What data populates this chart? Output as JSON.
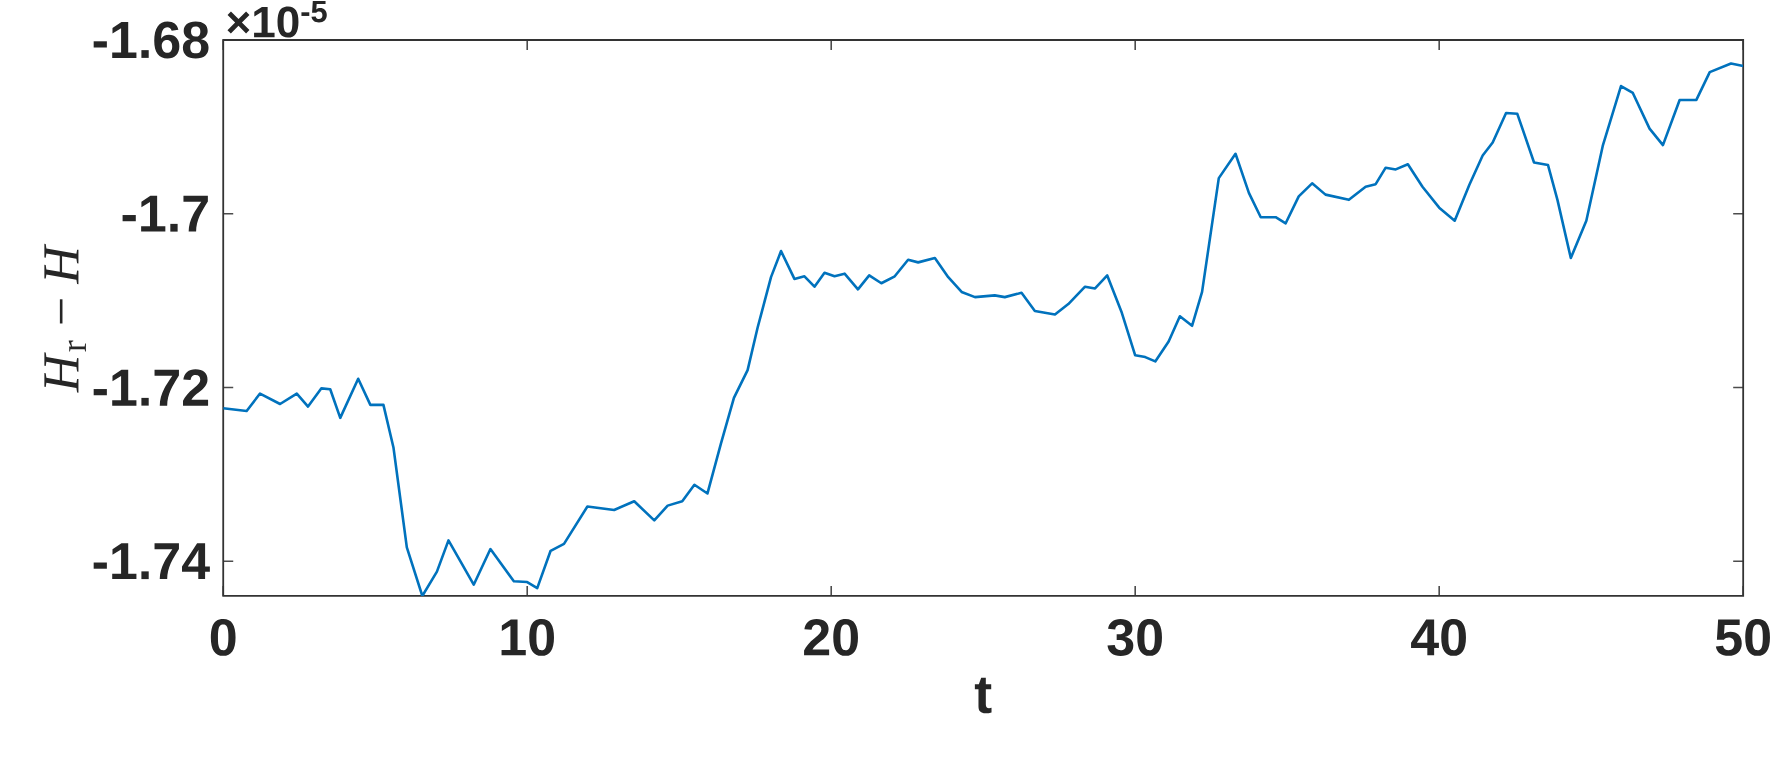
{
  "chart_data": {
    "type": "line",
    "xlabel": "t",
    "ylabel": "*H*$_{r}$ − *H*",
    "annotations": [
      "×10$^{-5}$"
    ],
    "xlim": [
      0,
      50
    ],
    "xticks": [
      0,
      10,
      20,
      30,
      40,
      50
    ],
    "ylim": [
      -1.744,
      -1.68
    ],
    "yticks": [
      -1.74,
      -1.72,
      -1.7,
      -1.68
    ],
    "grid": false,
    "marker": "none",
    "line_style": "solid",
    "series": [
      {
        "color": "#0072bd",
        "x": [
          0,
          0.77,
          1.21,
          1.87,
          2.42,
          2.79,
          3.23,
          3.52,
          3.85,
          4.44,
          4.84,
          5.27,
          5.6,
          6.04,
          6.55,
          7.03,
          7.41,
          7.8,
          8.24,
          8.79,
          9.56,
          10,
          10.33,
          10.77,
          11.21,
          11.98,
          12.86,
          13.52,
          14.18,
          14.62,
          15.1,
          15.5,
          15.93,
          16.37,
          16.8,
          17.25,
          17.58,
          18.02,
          18.35,
          18.79,
          19.12,
          19.45,
          19.78,
          20.11,
          20.44,
          20.88,
          21.25,
          21.65,
          22.09,
          22.53,
          22.86,
          23.41,
          23.85,
          24.29,
          24.73,
          25.38,
          25.71,
          26.26,
          26.7,
          27.36,
          27.8,
          28.35,
          28.68,
          29.08,
          29.56,
          30,
          30.33,
          30.66,
          31.1,
          31.47,
          31.87,
          32.2,
          32.75,
          33.3,
          33.74,
          34.13,
          34.62,
          34.95,
          35.38,
          35.82,
          36.26,
          37.03,
          37.58,
          37.91,
          38.24,
          38.57,
          38.97,
          39.45,
          40,
          40.51,
          40.99,
          41.43,
          41.76,
          42.2,
          42.57,
          43.12,
          43.58,
          43.89,
          44.33,
          44.84,
          45.38,
          45.98,
          46.37,
          46.92,
          47.36,
          47.91,
          48.46,
          48.9,
          49.6,
          50
        ],
        "values": [
          -1.7224,
          -1.7227,
          -1.7207,
          -1.7219,
          -1.7207,
          -1.7222,
          -1.7201,
          -1.7202,
          -1.7235,
          -1.719,
          -1.722,
          -1.722,
          -1.7269,
          -1.7384,
          -1.744,
          -1.7412,
          -1.7376,
          -1.74,
          -1.7427,
          -1.7386,
          -1.7423,
          -1.7424,
          -1.7431,
          -1.7388,
          -1.738,
          -1.7337,
          -1.7341,
          -1.7331,
          -1.7353,
          -1.7336,
          -1.7331,
          -1.7312,
          -1.7322,
          -1.7265,
          -1.7212,
          -1.718,
          -1.7131,
          -1.7073,
          -1.7043,
          -1.7075,
          -1.7072,
          -1.7084,
          -1.7068,
          -1.7072,
          -1.7069,
          -1.7087,
          -1.7071,
          -1.708,
          -1.7072,
          -1.7053,
          -1.7056,
          -1.7051,
          -1.7073,
          -1.709,
          -1.7096,
          -1.7094,
          -1.7096,
          -1.7091,
          -1.7112,
          -1.7116,
          -1.7104,
          -1.7084,
          -1.7086,
          -1.7071,
          -1.7114,
          -1.7163,
          -1.7165,
          -1.717,
          -1.7147,
          -1.7118,
          -1.7129,
          -1.709,
          -1.6959,
          -1.6931,
          -1.6976,
          -1.7004,
          -1.7004,
          -1.7011,
          -1.698,
          -1.6965,
          -1.6978,
          -1.6984,
          -1.6969,
          -1.6966,
          -1.6947,
          -1.6949,
          -1.6943,
          -1.6969,
          -1.6993,
          -1.7008,
          -1.6967,
          -1.6933,
          -1.6918,
          -1.6884,
          -1.6885,
          -1.6941,
          -1.6944,
          -1.6984,
          -1.7051,
          -1.7008,
          -1.6922,
          -1.6853,
          -1.6861,
          -1.6902,
          -1.6921,
          -1.6869,
          -1.6869,
          -1.6837,
          -1.6827,
          -1.683
        ]
      }
    ]
  }
}
